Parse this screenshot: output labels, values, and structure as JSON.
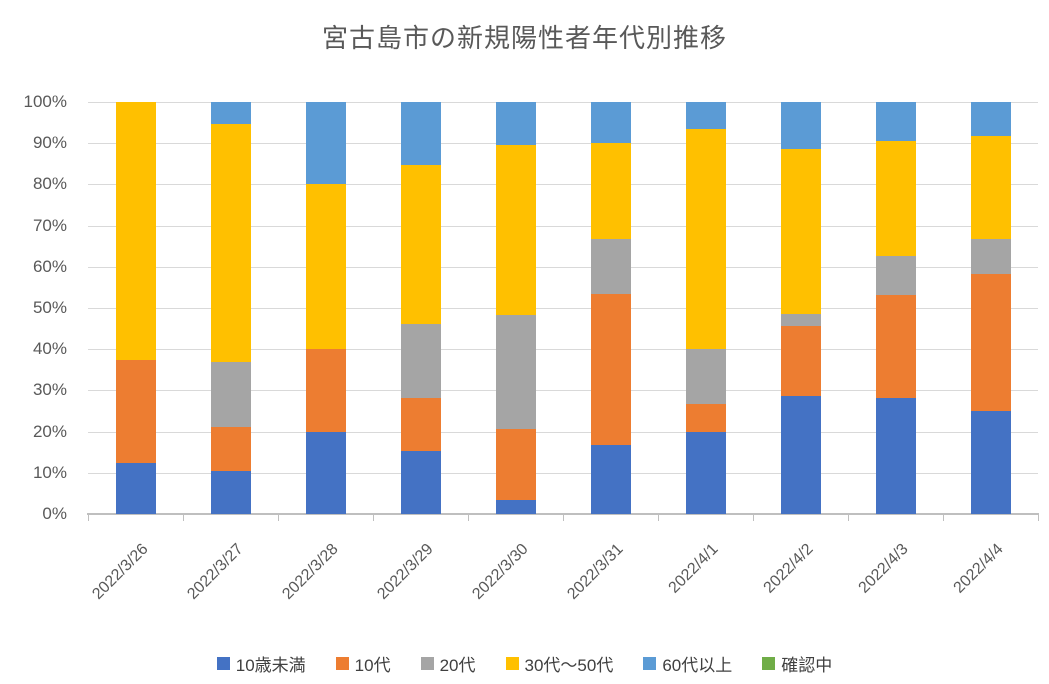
{
  "title": "宮古島市の新規陽性者年代別推移",
  "chart_data": {
    "type": "bar",
    "variant": "stacked-100-percent",
    "title": "宮古島市の新規陽性者年代別推移",
    "xlabel": "",
    "ylabel": "",
    "ylim": [
      0,
      100
    ],
    "y_ticks": [
      "0%",
      "10%",
      "20%",
      "30%",
      "40%",
      "50%",
      "60%",
      "70%",
      "80%",
      "90%",
      "100%"
    ],
    "grid": true,
    "legend_position": "bottom",
    "categories": [
      "2022/3/26",
      "2022/3/27",
      "2022/3/28",
      "2022/3/29",
      "2022/3/30",
      "2022/3/31",
      "2022/4/1",
      "2022/4/2",
      "2022/4/3",
      "2022/4/4"
    ],
    "series": [
      {
        "name": "10歳未満",
        "color": "#4472C4",
        "values": [
          12.5,
          10.53,
          20.0,
          15.38,
          3.45,
          16.67,
          20.0,
          28.57,
          28.13,
          25.0
        ]
      },
      {
        "name": "10代",
        "color": "#ED7D31",
        "values": [
          25.0,
          10.53,
          20.0,
          12.82,
          17.24,
          36.67,
          6.67,
          17.14,
          25.0,
          33.33
        ]
      },
      {
        "name": "20代",
        "color": "#A5A5A5",
        "values": [
          0.0,
          15.79,
          0.0,
          17.95,
          27.59,
          13.33,
          13.33,
          2.86,
          9.38,
          8.33
        ]
      },
      {
        "name": "30代〜50代",
        "color": "#FFC000",
        "values": [
          62.5,
          57.89,
          40.0,
          38.46,
          41.38,
          23.33,
          53.33,
          40.0,
          28.12,
          25.0
        ]
      },
      {
        "name": "60代以上",
        "color": "#5B9BD5",
        "values": [
          0.0,
          5.26,
          20.0,
          15.39,
          10.34,
          10.0,
          6.67,
          11.43,
          9.37,
          8.34
        ]
      },
      {
        "name": "確認中",
        "color": "#70AD47",
        "values": [
          0.0,
          0.0,
          0.0,
          0.0,
          0.0,
          0.0,
          0.0,
          0.0,
          0.0,
          0.0
        ]
      }
    ]
  },
  "colors": {
    "title_text": "#595959",
    "axis_text": "#595959",
    "gridline": "#D9D9D9",
    "axis_line": "#BFBFBF",
    "background": "#FFFFFF"
  }
}
